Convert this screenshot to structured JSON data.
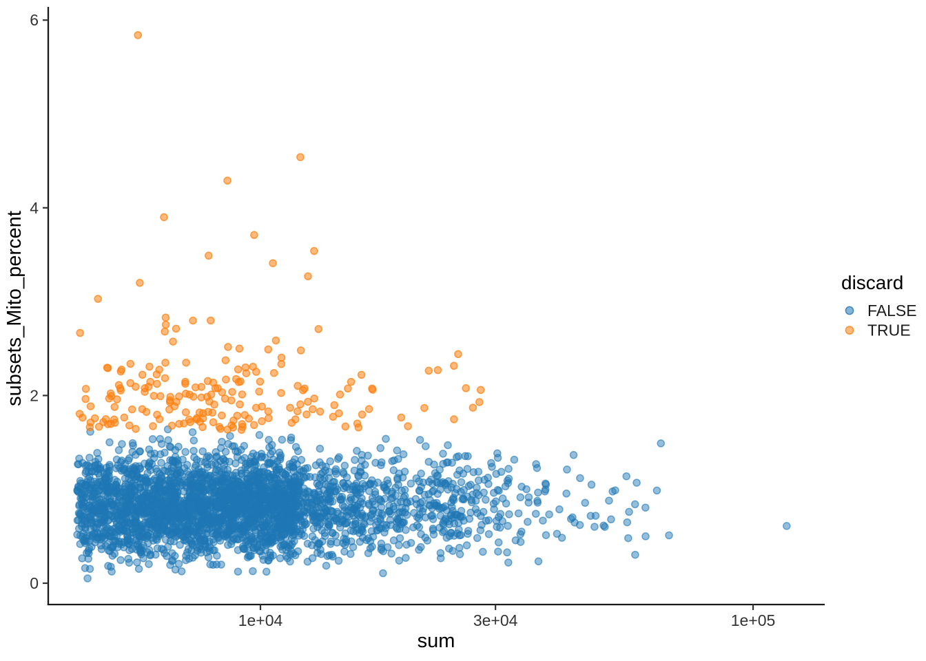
{
  "chart_data": {
    "type": "scatter",
    "title": "",
    "xlabel": "sum",
    "ylabel": "subsets_Mito_percent",
    "x_scale": "log10",
    "grid": false,
    "x_ticks": [
      {
        "value": 10000,
        "label": "1e+04"
      },
      {
        "value": 30000,
        "label": "3e+04"
      },
      {
        "value": 100000,
        "label": "1e+05"
      }
    ],
    "y_ticks": [
      {
        "value": 0,
        "label": "0"
      },
      {
        "value": 2,
        "label": "2"
      },
      {
        "value": 4,
        "label": "4"
      },
      {
        "value": 6,
        "label": "6"
      }
    ],
    "x_domain_log10": [
      3.569,
      5.146
    ],
    "y_domain": [
      -0.1,
      6.1
    ],
    "legend": {
      "title": "discard",
      "position": "right",
      "entries": [
        {
          "label": "FALSE",
          "color": "#1f77b4"
        },
        {
          "label": "TRUE",
          "color": "#ff7f0e"
        }
      ]
    },
    "point_style": {
      "radius": 5.0,
      "stroke_width": 1.5
    },
    "series": [
      {
        "name": "FALSE",
        "color": "#1f77b4",
        "fill_alpha": 0.48,
        "stroke_alpha": 0.62,
        "n_generated": 3100,
        "seed": 101,
        "x_log10_mixture": [
          {
            "w": 0.5,
            "type": "uniform",
            "min": 3.628,
            "max": 4.08
          },
          {
            "w": 0.3,
            "type": "normal",
            "mean": 3.95,
            "sd": 0.18,
            "min": 3.628,
            "max": 4.35
          },
          {
            "w": 0.15,
            "type": "normal",
            "mean": 4.2,
            "sd": 0.15,
            "min": 3.8,
            "max": 4.6
          },
          {
            "w": 0.05,
            "type": "exp",
            "offset": 4.35,
            "scale": 0.16,
            "min": 4.35,
            "max": 4.85
          }
        ],
        "y_dist": {
          "type": "normal",
          "mean": 0.82,
          "sd": 0.27,
          "min": 0.05,
          "max": 1.66
        },
        "explicit_points": [
          [
            65000,
            1.49
          ],
          [
            52500,
            0.99
          ],
          [
            51000,
            0.88
          ],
          [
            56000,
            0.76
          ],
          [
            51500,
            0.68
          ],
          [
            50000,
            0.6
          ],
          [
            55800,
            0.48
          ],
          [
            60500,
            0.5
          ],
          [
            67500,
            0.51
          ],
          [
            117000,
            0.61
          ],
          [
            47000,
            1.05
          ],
          [
            44500,
            0.62
          ]
        ]
      },
      {
        "name": "TRUE",
        "color": "#ff7f0e",
        "fill_alpha": 0.55,
        "stroke_alpha": 0.75,
        "n_generated": 185,
        "seed": 202,
        "x_log10_mixture": [
          {
            "w": 0.9,
            "type": "normal",
            "mean": 3.84,
            "sd": 0.16,
            "min": 3.628,
            "max": 4.3
          },
          {
            "w": 0.1,
            "type": "uniform",
            "min": 4.15,
            "max": 4.45
          }
        ],
        "y_dist": {
          "type": "halfnormal",
          "offset": 1.63,
          "sd": 0.5,
          "max": 3.05
        },
        "explicit_points": [
          [
            5640,
            5.84
          ],
          [
            12050,
            4.54
          ],
          [
            8570,
            4.29
          ],
          [
            6370,
            3.9
          ],
          [
            9710,
            3.71
          ],
          [
            12850,
            3.54
          ],
          [
            7850,
            3.49
          ],
          [
            10600,
            3.41
          ],
          [
            12490,
            3.27
          ],
          [
            5690,
            3.2
          ],
          [
            4680,
            3.03
          ],
          [
            27000,
            1.87
          ]
        ]
      }
    ]
  }
}
